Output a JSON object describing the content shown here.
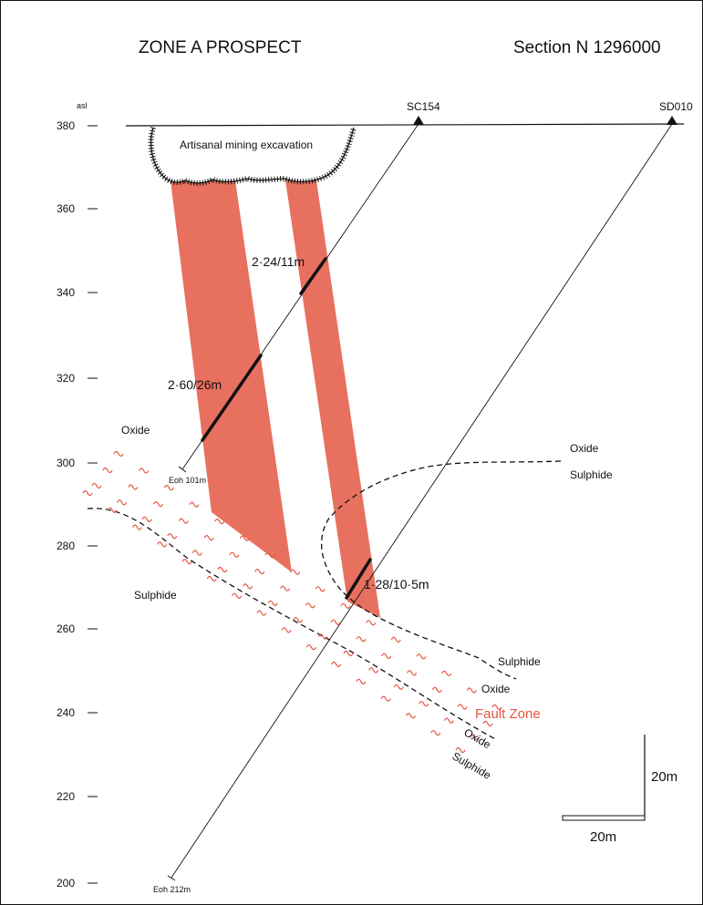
{
  "title": "ZONE A PROSPECT",
  "section": "Section N 1296000",
  "axis": {
    "unit_label": "asl",
    "ticks": [
      "380",
      "360",
      "340",
      "320",
      "300",
      "280",
      "260",
      "240",
      "220",
      "200"
    ]
  },
  "holes": [
    {
      "name": "SC154",
      "eoh": "Eoh 101m"
    },
    {
      "name": "SD010",
      "eoh": "Eoh 212m"
    }
  ],
  "excavation_label": "Artisanal mining excavation",
  "intercepts": [
    "2·24/11m",
    "2·60/26m",
    "1·28/10·5m"
  ],
  "zone_labels": {
    "oxide_left": "Oxide",
    "sulphide_left": "Sulphide",
    "oxide_right": "Oxide",
    "sulphide_right": "Sulphide",
    "sulphide_upper_lower": "Sulphide",
    "oxide_fault_upper": "Oxide",
    "oxide_fault_lower": "Oxide",
    "sulphide_bottom": "Sulphide"
  },
  "fault_zone_label": "Fault Zone",
  "scale_bar": {
    "vertical": "20m",
    "horizontal": "20m"
  },
  "colors": {
    "ore": "#e8705f",
    "fault": "#e2553f",
    "line": "#111111"
  }
}
